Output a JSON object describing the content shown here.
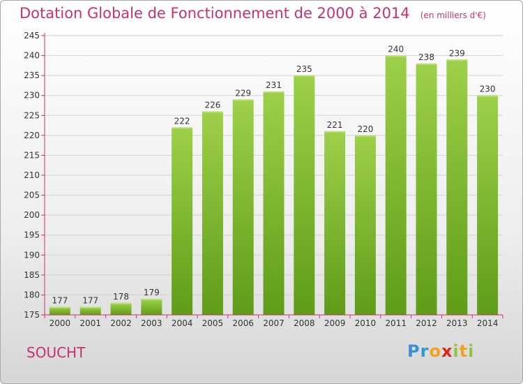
{
  "header": {
    "title": "Dotation Globale de Fonctionnement de 2000 à 2014",
    "unit": "(en milliers d'€)"
  },
  "place": "SOUCHT",
  "logo": {
    "text": "Proxiti"
  },
  "colors": {
    "title": "#c8316e",
    "bar_light": "#9ed04a",
    "bar_dark": "#5f9c18",
    "axis": "#c8316e"
  },
  "chart_data": {
    "type": "bar",
    "title": "Dotation Globale de Fonctionnement de 2000 à 2014",
    "subtitle": "(en milliers d'€)",
    "categories": [
      "2000",
      "2001",
      "2002",
      "2003",
      "2004",
      "2005",
      "2006",
      "2007",
      "2008",
      "2009",
      "2010",
      "2011",
      "2012",
      "2013",
      "2014"
    ],
    "values": [
      177,
      177,
      178,
      179,
      222,
      226,
      229,
      231,
      235,
      221,
      220,
      240,
      238,
      239,
      230
    ],
    "ylim": [
      175,
      245
    ],
    "yticks": [
      175,
      180,
      185,
      190,
      195,
      200,
      205,
      210,
      215,
      220,
      225,
      230,
      235,
      240,
      245
    ],
    "grid": true,
    "legend": "none"
  }
}
